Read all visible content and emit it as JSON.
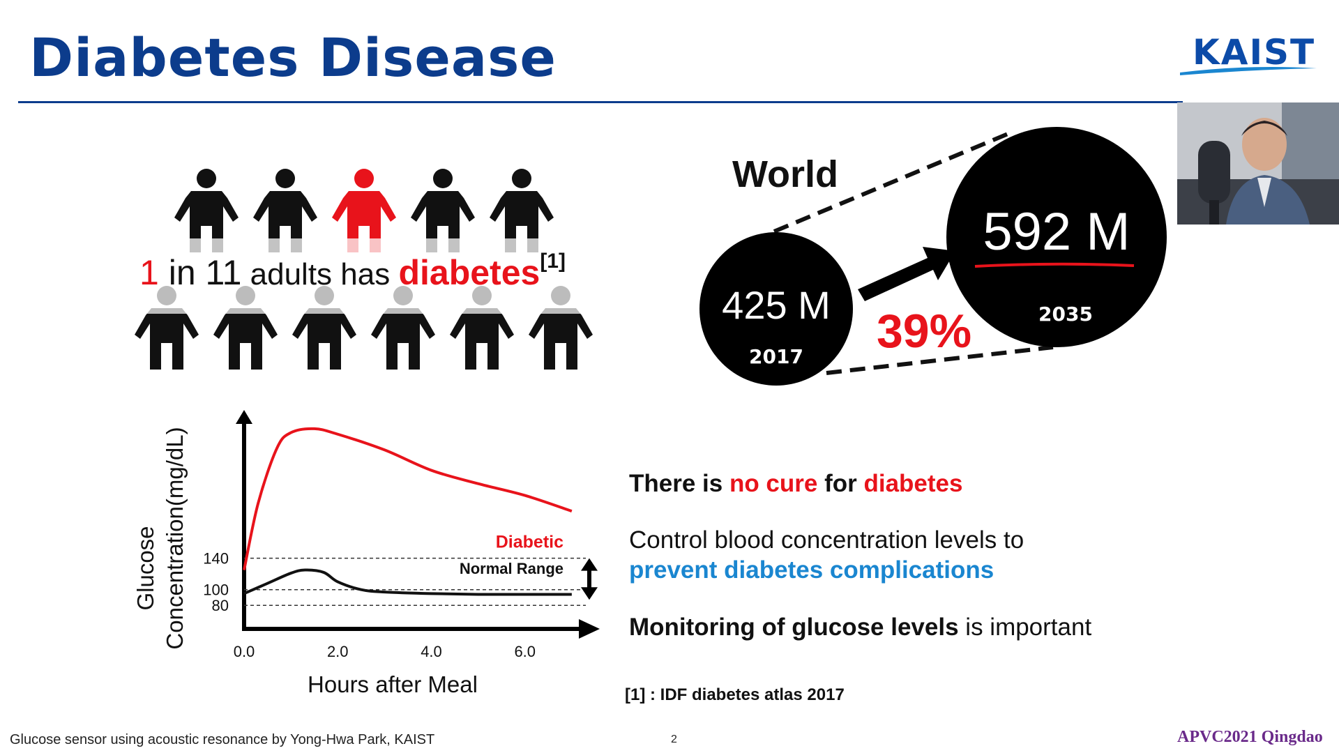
{
  "slide": {
    "title": "Diabetes Disease",
    "logo_text": "KAIST"
  },
  "stat": {
    "numerator": "1",
    "in_text": " in 11",
    "adults_text": " adults has ",
    "highlight": "diabetes",
    "reference_mark": "[1]",
    "highlight_color": "#e8131b"
  },
  "world": {
    "label": "World",
    "value_2017": "425 M",
    "year_2017": "2017",
    "value_2035": "592 M",
    "year_2035": "2035",
    "growth": "39%"
  },
  "chart_data": {
    "type": "line",
    "x_tick_labels": [
      "0.0",
      "2.0",
      "4.0",
      "6.0"
    ],
    "y_tick_labels": [
      "80",
      "100",
      "140"
    ],
    "xlabel": "Hours after Meal",
    "ylabel_line1": "Glucose",
    "ylabel_line2": "Concentration(mg/dL)",
    "normal_range": {
      "label": "Normal Range",
      "low": 80,
      "high": 140
    },
    "series": [
      {
        "name": "Diabetic",
        "color": "#e8131b",
        "x": [
          0.0,
          0.3,
          0.7,
          1.0,
          1.5,
          2.0,
          3.0,
          4.0,
          5.0,
          6.0,
          7.0
        ],
        "y": [
          125,
          210,
          280,
          300,
          305,
          298,
          278,
          252,
          235,
          220,
          200
        ]
      },
      {
        "name": "Normal",
        "color": "#111111",
        "x": [
          0.0,
          0.5,
          1.0,
          1.3,
          1.7,
          2.0,
          2.5,
          3.0,
          4.0,
          5.0,
          6.0,
          7.0
        ],
        "y": [
          95,
          108,
          121,
          125,
          122,
          110,
          100,
          97,
          95,
          94,
          94,
          94
        ]
      }
    ],
    "xlim": [
      0,
      7.3
    ],
    "ylim": [
      50,
      320
    ],
    "grid": false
  },
  "messages": {
    "m1_a": "There is ",
    "m1_b": "no cure",
    "m1_c": " for ",
    "m1_d": "diabetes",
    "m2_a": "Control blood concentration levels to",
    "m2_b": "prevent diabetes complications",
    "m3_a": "Monitoring of glucose levels",
    "m3_b": " is important",
    "citation": "[1] : IDF diabetes atlas 2017"
  },
  "footer": {
    "left": "Glucose sensor using acoustic resonance by Yong-Hwa Park, KAIST",
    "page": "2",
    "right": "APVC2021 Qingdao"
  },
  "colors": {
    "title_blue": "#0c3c8c",
    "accent_red": "#e8131b",
    "accent_blue": "#1a86d0"
  }
}
